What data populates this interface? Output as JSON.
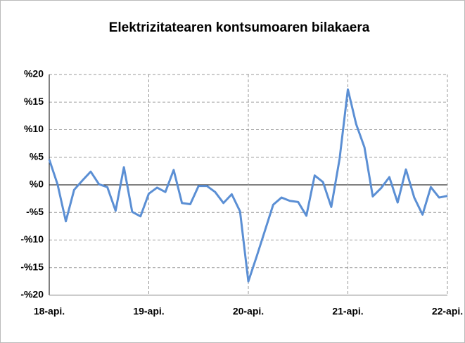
{
  "chart_data": {
    "type": "line",
    "title": "Elektrizitatearen kontsumoaren bilakaera",
    "categories": [
      "18-api.",
      null,
      null,
      null,
      null,
      null,
      null,
      null,
      null,
      null,
      null,
      null,
      "19-api.",
      null,
      null,
      null,
      null,
      null,
      null,
      null,
      null,
      null,
      null,
      null,
      "20-api.",
      null,
      null,
      null,
      null,
      null,
      null,
      null,
      null,
      null,
      null,
      null,
      "21-api.",
      null,
      null,
      null,
      null,
      null,
      null,
      null,
      null,
      null,
      null,
      null,
      "22-api."
    ],
    "series": [
      {
        "name": "Elektrizitatearen kontsumoa",
        "color": "#5b8fd4",
        "values": [
          4.6,
          0.1,
          -6.6,
          -0.9,
          0.8,
          2.4,
          0.1,
          -0.4,
          -4.7,
          3.2,
          -4.9,
          -5.7,
          -1.6,
          -0.5,
          -1.3,
          2.7,
          -3.3,
          -3.5,
          -0.2,
          -0.2,
          -1.3,
          -3.3,
          -1.7,
          -4.8,
          -17.5,
          -13,
          -8.3,
          -3.6,
          -2.3,
          -2.9,
          -3.1,
          -5.6,
          1.7,
          0.5,
          -4,
          4.7,
          17.3,
          11,
          6.8,
          -2.1,
          -0.6,
          1.4,
          -3.2,
          2.8,
          -2.3,
          -5.4,
          -0.4,
          -2.3,
          -2.0
        ]
      }
    ],
    "ylim": [
      -20,
      20
    ],
    "yticks": [
      {
        "value": -20,
        "label": "-%20"
      },
      {
        "value": -15,
        "label": "-%15"
      },
      {
        "value": -10,
        "label": "-%10"
      },
      {
        "value": -5,
        "label": "-%5"
      },
      {
        "value": 0,
        "label": "%0"
      },
      {
        "value": 5,
        "label": "%5"
      },
      {
        "value": 10,
        "label": "%10"
      },
      {
        "value": 15,
        "label": "%15"
      },
      {
        "value": 20,
        "label": "%20"
      }
    ],
    "grid": true
  }
}
